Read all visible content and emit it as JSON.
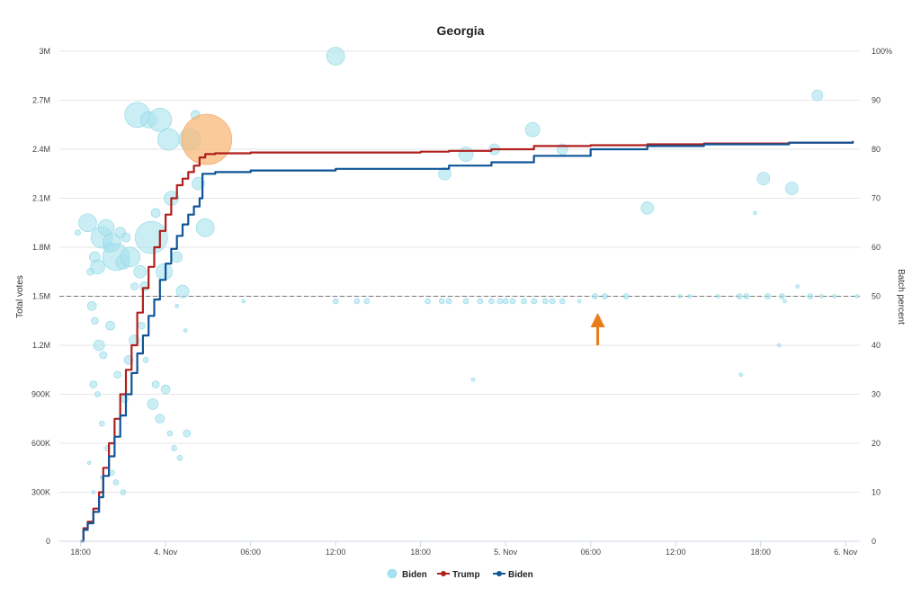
{
  "chart_data": {
    "type": "line",
    "title": "Georgia",
    "ylabel": "Total votes",
    "y2label": "Batch percent",
    "x_ticks": [
      "18:00",
      "4. Nov",
      "06:00",
      "12:00",
      "18:00",
      "5. Nov",
      "06:00",
      "12:00",
      "18:00",
      "6. Nov"
    ],
    "x_range_hours": [
      -1.5,
      55
    ],
    "ylim": [
      0,
      3000000
    ],
    "y_ticks": [
      "0",
      "300K",
      "600K",
      "900K",
      "1.2M",
      "1.5M",
      "1.8M",
      "2.1M",
      "2.4M",
      "2.7M",
      "3M"
    ],
    "y2lim": [
      0,
      100
    ],
    "y2_ticks": [
      "0",
      "10",
      "20",
      "30",
      "40",
      "50",
      "60",
      "70",
      "80",
      "90",
      "100%"
    ],
    "reference_line": {
      "y2": 50,
      "style": "dashed"
    },
    "grid": true,
    "legend": "bottom-center",
    "legend_items": [
      {
        "label": "Biden",
        "kind": "bubble",
        "color": "#a8e3ef"
      },
      {
        "label": "Trump",
        "kind": "line",
        "color": "#b0201e"
      },
      {
        "label": "Biden",
        "kind": "line",
        "color": "#0f5597"
      }
    ],
    "series": [
      {
        "name": "Trump",
        "color": "#b0201e",
        "points": [
          [
            0,
            0
          ],
          [
            0.2,
            80000
          ],
          [
            0.5,
            120000
          ],
          [
            0.9,
            200000
          ],
          [
            1.3,
            300000
          ],
          [
            1.6,
            450000
          ],
          [
            2.0,
            600000
          ],
          [
            2.4,
            750000
          ],
          [
            2.8,
            900000
          ],
          [
            3.2,
            1050000
          ],
          [
            3.6,
            1200000
          ],
          [
            4.0,
            1400000
          ],
          [
            4.4,
            1550000
          ],
          [
            4.8,
            1680000
          ],
          [
            5.2,
            1800000
          ],
          [
            5.6,
            1900000
          ],
          [
            6.0,
            2000000
          ],
          [
            6.4,
            2100000
          ],
          [
            6.8,
            2180000
          ],
          [
            7.2,
            2220000
          ],
          [
            7.6,
            2260000
          ],
          [
            8.0,
            2300000
          ],
          [
            8.4,
            2350000
          ],
          [
            8.8,
            2370000
          ],
          [
            9.5,
            2375000
          ],
          [
            12,
            2380000
          ],
          [
            18,
            2380000
          ],
          [
            24,
            2385000
          ],
          [
            26,
            2390000
          ],
          [
            29,
            2400000
          ],
          [
            32,
            2420000
          ],
          [
            36,
            2425000
          ],
          [
            40,
            2430000
          ],
          [
            44,
            2435000
          ],
          [
            50,
            2440000
          ],
          [
            54.5,
            2450000
          ]
        ]
      },
      {
        "name": "Biden",
        "color": "#0f5597",
        "points": [
          [
            0,
            0
          ],
          [
            0.2,
            70000
          ],
          [
            0.5,
            110000
          ],
          [
            0.9,
            180000
          ],
          [
            1.3,
            270000
          ],
          [
            1.6,
            400000
          ],
          [
            2.0,
            520000
          ],
          [
            2.4,
            640000
          ],
          [
            2.8,
            770000
          ],
          [
            3.2,
            900000
          ],
          [
            3.6,
            1030000
          ],
          [
            4.0,
            1150000
          ],
          [
            4.4,
            1260000
          ],
          [
            4.8,
            1380000
          ],
          [
            5.2,
            1480000
          ],
          [
            5.6,
            1600000
          ],
          [
            6.0,
            1700000
          ],
          [
            6.4,
            1790000
          ],
          [
            6.8,
            1870000
          ],
          [
            7.2,
            1940000
          ],
          [
            7.6,
            2000000
          ],
          [
            8.0,
            2050000
          ],
          [
            8.4,
            2100000
          ],
          [
            8.6,
            2250000
          ],
          [
            9.5,
            2260000
          ],
          [
            12,
            2270000
          ],
          [
            18,
            2280000
          ],
          [
            24,
            2280000
          ],
          [
            26,
            2300000
          ],
          [
            29,
            2320000
          ],
          [
            32,
            2360000
          ],
          [
            36,
            2400000
          ],
          [
            40,
            2420000
          ],
          [
            44,
            2430000
          ],
          [
            50,
            2440000
          ],
          [
            54.5,
            2450000
          ]
        ]
      }
    ],
    "bubbles": [
      {
        "series": "Biden",
        "points": [
          [
            -0.2,
            63,
            3
          ],
          [
            0.5,
            65,
            10
          ],
          [
            0.7,
            55,
            4
          ],
          [
            1.0,
            58,
            6
          ],
          [
            1.2,
            56,
            8
          ],
          [
            1.5,
            62,
            12
          ],
          [
            1.8,
            64,
            9
          ],
          [
            2.0,
            60,
            6
          ],
          [
            2.2,
            61,
            10
          ],
          [
            2.5,
            58,
            15
          ],
          [
            2.8,
            63,
            6
          ],
          [
            3.0,
            57,
            8
          ],
          [
            3.2,
            62,
            5
          ],
          [
            3.5,
            58,
            11
          ],
          [
            3.8,
            52,
            4
          ],
          [
            4.0,
            87,
            14
          ],
          [
            4.2,
            55,
            7
          ],
          [
            4.5,
            52,
            5
          ],
          [
            4.8,
            86,
            9
          ],
          [
            5.0,
            62,
            18
          ],
          [
            5.3,
            67,
            5
          ],
          [
            5.6,
            86,
            13
          ],
          [
            5.9,
            55,
            9
          ],
          [
            6.2,
            82,
            12
          ],
          [
            6.4,
            70,
            8
          ],
          [
            6.8,
            58,
            6
          ],
          [
            7.2,
            51,
            7
          ],
          [
            7.7,
            82,
            12
          ],
          [
            8.1,
            87,
            5
          ],
          [
            8.3,
            73,
            7
          ],
          [
            8.8,
            64,
            10
          ],
          [
            0.8,
            48,
            5
          ],
          [
            1.0,
            45,
            4
          ],
          [
            1.3,
            40,
            6
          ],
          [
            1.6,
            38,
            4
          ],
          [
            2.1,
            44,
            5
          ],
          [
            2.6,
            34,
            4
          ],
          [
            3.1,
            29,
            4
          ],
          [
            3.4,
            37,
            5
          ],
          [
            3.8,
            41,
            6
          ],
          [
            4.3,
            44,
            4
          ],
          [
            4.6,
            37,
            3
          ],
          [
            5.1,
            28,
            6
          ],
          [
            5.3,
            32,
            4
          ],
          [
            5.6,
            25,
            5
          ],
          [
            6.0,
            31,
            5
          ],
          [
            6.3,
            22,
            3
          ],
          [
            6.6,
            19,
            3
          ],
          [
            7.0,
            17,
            3
          ],
          [
            7.5,
            22,
            4
          ],
          [
            0.9,
            32,
            4
          ],
          [
            1.2,
            30,
            3
          ],
          [
            1.5,
            24,
            3
          ],
          [
            1.9,
            19,
            3
          ],
          [
            2.2,
            14,
            3
          ],
          [
            2.5,
            12,
            3
          ],
          [
            3.0,
            10,
            3
          ],
          [
            0.6,
            16,
            2
          ],
          [
            0.9,
            10,
            2
          ],
          [
            1.5,
            13,
            2
          ],
          [
            11.5,
            49,
            2
          ],
          [
            18.0,
            49,
            3
          ],
          [
            19.5,
            49,
            3
          ],
          [
            20.2,
            49,
            3
          ],
          [
            24.5,
            49,
            3
          ],
          [
            25.5,
            49,
            3
          ],
          [
            26.0,
            49,
            3
          ],
          [
            27.2,
            49,
            3
          ],
          [
            28.2,
            49,
            3
          ],
          [
            29.0,
            49,
            3
          ],
          [
            29.6,
            49,
            3
          ],
          [
            30.0,
            49,
            3
          ],
          [
            30.5,
            49,
            3
          ],
          [
            31.3,
            49,
            3
          ],
          [
            32.0,
            49,
            3
          ],
          [
            32.8,
            49,
            3
          ],
          [
            33.3,
            49,
            3
          ],
          [
            34.0,
            49,
            3
          ],
          [
            35.2,
            49,
            2
          ],
          [
            36.3,
            50,
            3
          ],
          [
            37.0,
            50,
            3
          ],
          [
            38.5,
            50,
            3
          ],
          [
            42.3,
            50,
            2
          ],
          [
            43.0,
            50,
            2
          ],
          [
            45.0,
            50,
            2
          ],
          [
            46.5,
            50,
            3
          ],
          [
            47.0,
            50,
            3
          ],
          [
            48.5,
            50,
            3
          ],
          [
            49.5,
            50,
            3
          ],
          [
            49.7,
            49,
            2
          ],
          [
            51.5,
            50,
            3
          ],
          [
            53.2,
            50,
            2
          ],
          [
            54.8,
            50,
            2
          ],
          [
            52.3,
            50,
            2
          ],
          [
            50.6,
            52,
            2
          ],
          [
            18.0,
            99,
            10
          ],
          [
            31.9,
            84,
            8
          ],
          [
            27.2,
            79,
            8
          ],
          [
            29.2,
            80,
            6
          ],
          [
            34.0,
            80,
            6
          ],
          [
            25.7,
            75,
            7
          ],
          [
            40.0,
            68,
            7
          ],
          [
            52.0,
            91,
            6
          ],
          [
            50.2,
            72,
            7
          ],
          [
            48.2,
            74,
            7
          ],
          [
            47.6,
            67,
            2
          ],
          [
            46.6,
            34,
            2
          ],
          [
            27.7,
            33,
            2
          ],
          [
            49.3,
            40,
            2
          ],
          [
            7.4,
            43,
            2
          ],
          [
            6.8,
            48,
            2
          ]
        ]
      },
      {
        "series": "Biden (highlight)",
        "color": "#f8b878",
        "points": [
          [
            8.9,
            82,
            28
          ]
        ]
      }
    ],
    "annotation": {
      "type": "arrow",
      "x": 36.5,
      "y2": 40,
      "color": "#e87c16"
    }
  }
}
